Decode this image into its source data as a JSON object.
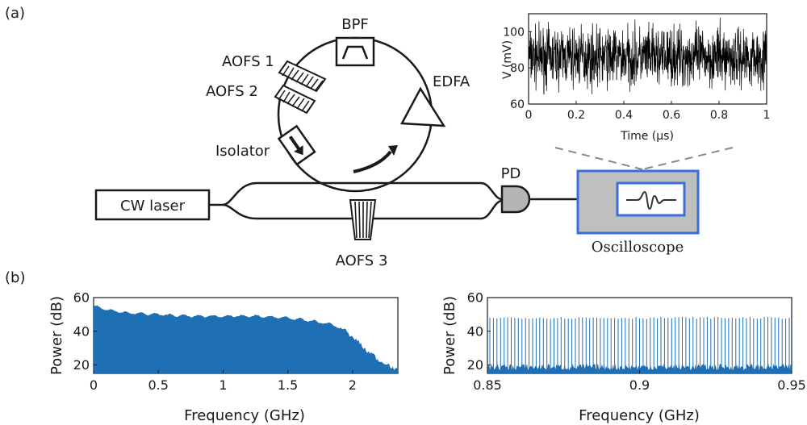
{
  "panel_labels": {
    "a": "(a)",
    "b": "(b)"
  },
  "components": {
    "cw_laser": "CW laser",
    "bpf": "BPF",
    "edfa": "EDFA",
    "aofs1": "AOFS 1",
    "aofs2": "AOFS 2",
    "aofs3": "AOFS 3",
    "isolator": "Isolator",
    "pd": "PD",
    "oscilloscope": "Oscilloscope"
  },
  "colors": {
    "scope_border": "#3a6fd8",
    "scope_fill": "#bfbfbf",
    "spectrum_fill": "#1f6fb5",
    "trace": "#000000"
  },
  "chart_data": [
    {
      "type": "line",
      "xlabel": "Time (μs)",
      "ylabel": "V (mV)",
      "xlim": [
        0,
        1
      ],
      "ylim": [
        60,
        110
      ],
      "xticks": [
        "0",
        "0.2",
        "0.4",
        "0.6",
        "0.8",
        "1"
      ],
      "yticks": [
        "60",
        "80",
        "100"
      ],
      "series": [
        {
          "values_description": "dense noise-like trace",
          "mean": 85,
          "min": 62,
          "max": 110
        }
      ]
    },
    {
      "type": "area",
      "xlabel": "Frequency (GHz)",
      "ylabel": "Power (dB)",
      "xlim": [
        0,
        2.35
      ],
      "ylim": [
        15,
        60
      ],
      "xticks": [
        "0",
        "0.5",
        "1",
        "1.5",
        "2"
      ],
      "yticks": [
        "20",
        "40",
        "60"
      ],
      "x": [
        0,
        0.1,
        0.25,
        0.5,
        0.75,
        1.0,
        1.25,
        1.5,
        1.7,
        1.85,
        1.95,
        2.05,
        2.15,
        2.25,
        2.35
      ],
      "values": [
        55,
        53,
        51,
        50,
        49,
        49,
        49,
        48,
        46,
        44,
        40,
        33,
        26,
        21,
        17
      ]
    },
    {
      "type": "bar",
      "xlabel": "Frequency (GHz)",
      "ylabel": "Power (dB)",
      "xlim": [
        0.85,
        0.95
      ],
      "ylim": [
        15,
        60
      ],
      "xticks": [
        "0.85",
        "0.9",
        "0.95"
      ],
      "yticks": [
        "20",
        "40",
        "60"
      ],
      "comb_lines": 85,
      "comb_level": 48,
      "floor_level": 18
    }
  ]
}
